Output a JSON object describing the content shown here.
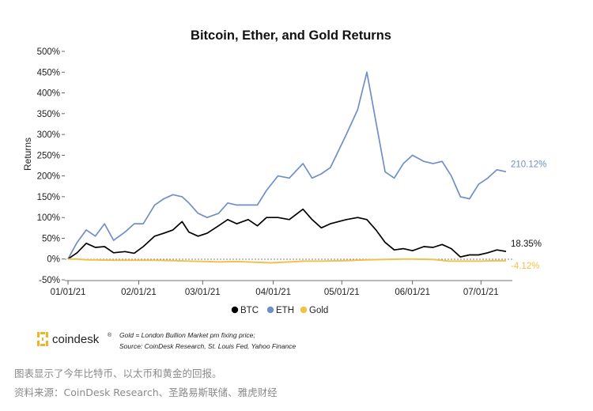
{
  "chart_data": {
    "type": "line",
    "title": "Bitcoin, Ether, and Gold Returns",
    "ylabel": "Returns",
    "ylim": [
      -50,
      500
    ],
    "yticks": [
      "500%",
      "450%",
      "400%",
      "350%",
      "300%",
      "250%",
      "200%",
      "150%",
      "100%",
      "50%",
      "0%",
      "-50%"
    ],
    "xticks": [
      "01/01/21",
      "02/01/21",
      "03/01/21",
      "04/01/21",
      "05/01/21",
      "06/01/21",
      "07/01/21"
    ],
    "zero_line": "dotted",
    "legend_position": "bottom",
    "series": [
      {
        "name": "BTC",
        "color": "#000000",
        "end_label": "18.35%",
        "points": [
          [
            "2021-01-01",
            0
          ],
          [
            "2021-01-05",
            15
          ],
          [
            "2021-01-09",
            38
          ],
          [
            "2021-01-13",
            28
          ],
          [
            "2021-01-17",
            30
          ],
          [
            "2021-01-21",
            15
          ],
          [
            "2021-01-26",
            18
          ],
          [
            "2021-01-30",
            14
          ],
          [
            "2021-02-03",
            30
          ],
          [
            "2021-02-08",
            55
          ],
          [
            "2021-02-12",
            62
          ],
          [
            "2021-02-16",
            70
          ],
          [
            "2021-02-20",
            90
          ],
          [
            "2021-02-23",
            65
          ],
          [
            "2021-02-27",
            55
          ],
          [
            "2021-03-03",
            62
          ],
          [
            "2021-03-08",
            80
          ],
          [
            "2021-03-12",
            95
          ],
          [
            "2021-03-16",
            85
          ],
          [
            "2021-03-21",
            95
          ],
          [
            "2021-03-25",
            80
          ],
          [
            "2021-03-29",
            100
          ],
          [
            "2021-04-03",
            100
          ],
          [
            "2021-04-08",
            95
          ],
          [
            "2021-04-14",
            120
          ],
          [
            "2021-04-18",
            95
          ],
          [
            "2021-04-22",
            75
          ],
          [
            "2021-04-26",
            85
          ],
          [
            "2021-05-03",
            95
          ],
          [
            "2021-05-08",
            100
          ],
          [
            "2021-05-12",
            95
          ],
          [
            "2021-05-16",
            70
          ],
          [
            "2021-05-20",
            40
          ],
          [
            "2021-05-24",
            22
          ],
          [
            "2021-05-28",
            25
          ],
          [
            "2021-06-01",
            20
          ],
          [
            "2021-06-06",
            30
          ],
          [
            "2021-06-10",
            28
          ],
          [
            "2021-06-14",
            35
          ],
          [
            "2021-06-18",
            25
          ],
          [
            "2021-06-22",
            5
          ],
          [
            "2021-06-26",
            10
          ],
          [
            "2021-06-30",
            10
          ],
          [
            "2021-07-04",
            15
          ],
          [
            "2021-07-08",
            22
          ],
          [
            "2021-07-12",
            18.35
          ]
        ]
      },
      {
        "name": "ETH",
        "color": "#6f8fc6",
        "end_label": "210.12%",
        "points": [
          [
            "2021-01-01",
            0
          ],
          [
            "2021-01-05",
            40
          ],
          [
            "2021-01-09",
            70
          ],
          [
            "2021-01-13",
            55
          ],
          [
            "2021-01-17",
            85
          ],
          [
            "2021-01-21",
            45
          ],
          [
            "2021-01-26",
            65
          ],
          [
            "2021-01-30",
            85
          ],
          [
            "2021-02-03",
            85
          ],
          [
            "2021-02-08",
            130
          ],
          [
            "2021-02-12",
            145
          ],
          [
            "2021-02-16",
            155
          ],
          [
            "2021-02-20",
            150
          ],
          [
            "2021-02-23",
            135
          ],
          [
            "2021-02-27",
            110
          ],
          [
            "2021-03-03",
            100
          ],
          [
            "2021-03-08",
            110
          ],
          [
            "2021-03-12",
            135
          ],
          [
            "2021-03-16",
            130
          ],
          [
            "2021-03-21",
            130
          ],
          [
            "2021-03-25",
            130
          ],
          [
            "2021-03-29",
            165
          ],
          [
            "2021-04-03",
            200
          ],
          [
            "2021-04-08",
            195
          ],
          [
            "2021-04-14",
            230
          ],
          [
            "2021-04-18",
            195
          ],
          [
            "2021-04-22",
            205
          ],
          [
            "2021-04-26",
            220
          ],
          [
            "2021-05-03",
            300
          ],
          [
            "2021-05-08",
            360
          ],
          [
            "2021-05-12",
            450
          ],
          [
            "2021-05-16",
            330
          ],
          [
            "2021-05-20",
            210
          ],
          [
            "2021-05-24",
            195
          ],
          [
            "2021-05-28",
            230
          ],
          [
            "2021-06-01",
            250
          ],
          [
            "2021-06-06",
            235
          ],
          [
            "2021-06-10",
            230
          ],
          [
            "2021-06-14",
            235
          ],
          [
            "2021-06-18",
            200
          ],
          [
            "2021-06-22",
            150
          ],
          [
            "2021-06-26",
            145
          ],
          [
            "2021-06-30",
            180
          ],
          [
            "2021-07-04",
            195
          ],
          [
            "2021-07-08",
            215
          ],
          [
            "2021-07-12",
            210.12
          ]
        ]
      },
      {
        "name": "Gold",
        "color": "#f0c24a",
        "end_label": "-4.12%",
        "points": [
          [
            "2021-01-01",
            0
          ],
          [
            "2021-01-05",
            0
          ],
          [
            "2021-01-09",
            -2
          ],
          [
            "2021-01-13",
            -2
          ],
          [
            "2021-01-21",
            -3
          ],
          [
            "2021-01-30",
            -3
          ],
          [
            "2021-02-08",
            -3
          ],
          [
            "2021-02-16",
            -4
          ],
          [
            "2021-02-23",
            -5
          ],
          [
            "2021-03-03",
            -6
          ],
          [
            "2021-03-08",
            -7
          ],
          [
            "2021-03-16",
            -6
          ],
          [
            "2021-03-25",
            -8
          ],
          [
            "2021-03-31",
            -9
          ],
          [
            "2021-04-08",
            -7
          ],
          [
            "2021-04-14",
            -5
          ],
          [
            "2021-04-22",
            -5
          ],
          [
            "2021-05-03",
            -4
          ],
          [
            "2021-05-12",
            -2
          ],
          [
            "2021-05-20",
            -1
          ],
          [
            "2021-05-28",
            0
          ],
          [
            "2021-06-01",
            0
          ],
          [
            "2021-06-10",
            -1
          ],
          [
            "2021-06-17",
            -5
          ],
          [
            "2021-06-24",
            -5
          ],
          [
            "2021-07-01",
            -5
          ],
          [
            "2021-07-08",
            -4
          ],
          [
            "2021-07-12",
            -4.12
          ]
        ]
      }
    ]
  },
  "footer": {
    "brand": "coindesk",
    "brand_mark": "®",
    "note": "Gold = London Bullion Market pm fixing price;",
    "source": "Source: CoinDesk Research, St. Louis Fed, Yahoo Finance"
  },
  "captions": {
    "line1": "图表显示了今年比特币、以太币和黄金的回报。",
    "line2": "资料来源：CoinDesk Research、圣路易斯联储、雅虎财经"
  }
}
